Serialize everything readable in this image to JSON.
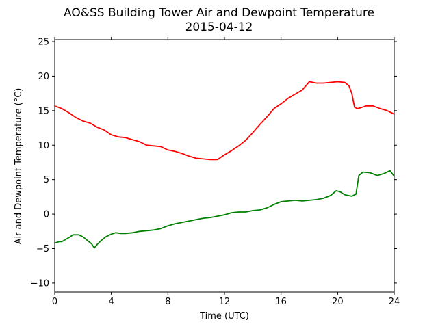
{
  "chart_data": {
    "type": "line",
    "title": "AO&SS Building Tower Air and Dewpoint Temperature",
    "subtitle": "2015-04-12",
    "xlabel": "Time (UTC)",
    "ylabel": "Air and Dewpoint Temperature (°C)",
    "xlim": [
      0,
      24
    ],
    "ylim": [
      -11.3,
      25.3
    ],
    "xticks": [
      0,
      4,
      8,
      12,
      16,
      20,
      24
    ],
    "yticks": [
      -10,
      -5,
      0,
      5,
      10,
      15,
      20,
      25
    ],
    "grid": false,
    "legend": "none",
    "series": [
      {
        "color": "#ff0000",
        "x": [
          0,
          0.5,
          1,
          1.5,
          2,
          2.5,
          3,
          3.5,
          4,
          4.5,
          5,
          5.5,
          6,
          6.5,
          7,
          7.5,
          8,
          8.5,
          9,
          9.5,
          10,
          10.5,
          11,
          11.5,
          12,
          12.5,
          13,
          13.5,
          14,
          14.5,
          15,
          15.5,
          16,
          16.5,
          17,
          17.5,
          18,
          18.5,
          19,
          19.5,
          20,
          20.5,
          20.8,
          21,
          21.2,
          21.4,
          21.6,
          22,
          22.5,
          23,
          23.5,
          24
        ],
        "values": [
          15.7,
          15.3,
          14.7,
          14.0,
          13.5,
          13.2,
          12.6,
          12.2,
          11.5,
          11.2,
          11.1,
          10.8,
          10.5,
          10.0,
          9.9,
          9.8,
          9.3,
          9.1,
          8.8,
          8.4,
          8.1,
          8.0,
          7.9,
          7.9,
          8.6,
          9.2,
          9.9,
          10.7,
          11.8,
          13.0,
          14.1,
          15.3,
          16.0,
          16.8,
          17.4,
          18.0,
          19.2,
          19.0,
          19.0,
          19.1,
          19.2,
          19.1,
          18.6,
          17.5,
          15.5,
          15.3,
          15.4,
          15.7,
          15.7,
          15.3,
          15.0,
          14.5
        ]
      },
      {
        "color": "#008000",
        "x": [
          0,
          0.3,
          0.5,
          1,
          1.3,
          1.7,
          2,
          2.3,
          2.6,
          2.8,
          3,
          3.3,
          3.6,
          4,
          4.3,
          4.7,
          5,
          5.5,
          6,
          6.5,
          7,
          7.5,
          8,
          8.5,
          9,
          9.5,
          10,
          10.5,
          11,
          11.5,
          12,
          12.5,
          13,
          13.5,
          14,
          14.5,
          15,
          15.5,
          16,
          16.5,
          17,
          17.5,
          18,
          18.5,
          19,
          19.5,
          19.9,
          20.2,
          20.5,
          21,
          21.3,
          21.5,
          21.8,
          22.3,
          22.8,
          23.3,
          23.7,
          24
        ],
        "values": [
          -4.2,
          -4.0,
          -4.0,
          -3.4,
          -3.0,
          -3.0,
          -3.3,
          -3.8,
          -4.3,
          -4.9,
          -4.4,
          -3.8,
          -3.3,
          -2.9,
          -2.7,
          -2.8,
          -2.8,
          -2.7,
          -2.5,
          -2.4,
          -2.3,
          -2.1,
          -1.7,
          -1.4,
          -1.2,
          -1.0,
          -0.8,
          -0.6,
          -0.5,
          -0.3,
          -0.1,
          0.2,
          0.3,
          0.3,
          0.5,
          0.6,
          0.9,
          1.4,
          1.8,
          1.9,
          2.0,
          1.9,
          2.0,
          2.1,
          2.3,
          2.7,
          3.4,
          3.2,
          2.8,
          2.6,
          2.9,
          5.6,
          6.1,
          6.0,
          5.6,
          5.9,
          6.3,
          5.5
        ]
      }
    ]
  }
}
